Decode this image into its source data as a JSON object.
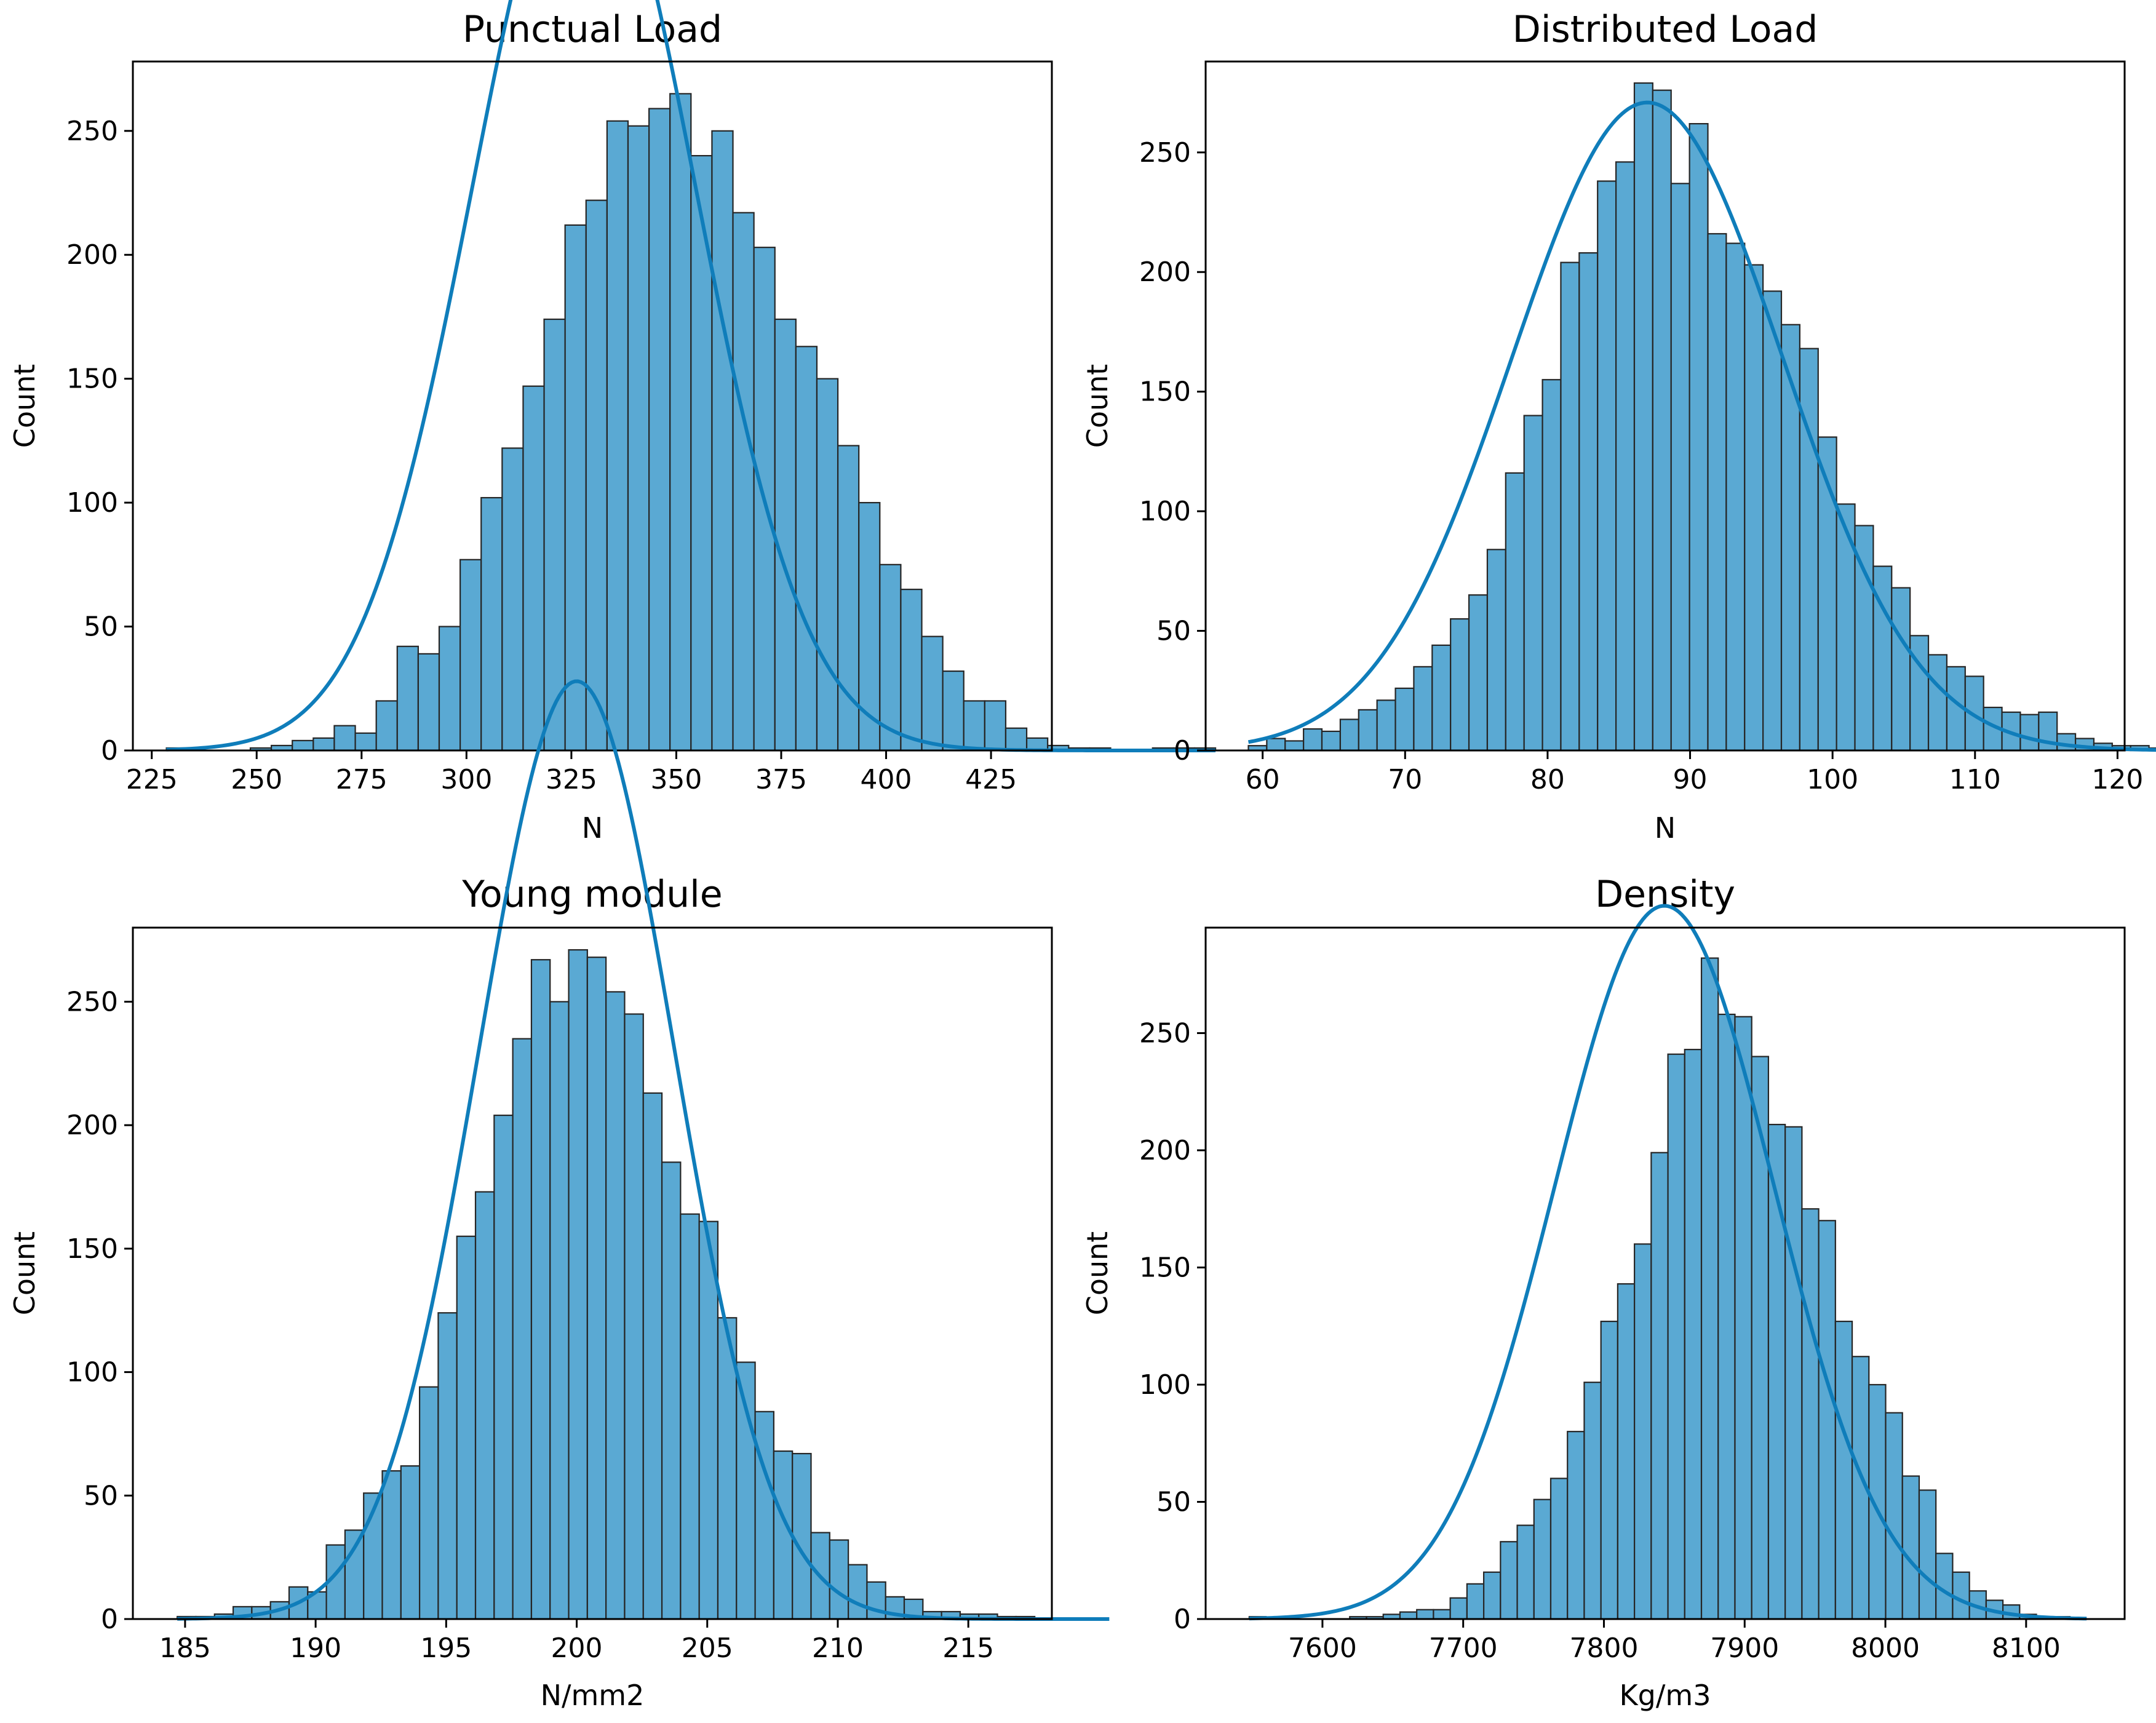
{
  "figure": {
    "bar_color": "#5aa9d3",
    "bar_edge": "#262626",
    "kde_color": "#0f7dba",
    "background": "#ffffff"
  },
  "chart_data": [
    {
      "type": "bar",
      "title": "Punctual Load",
      "xlabel": "N",
      "ylabel": "Count",
      "xlim": [
        220.5,
        439.5
      ],
      "ylim": [
        0,
        278
      ],
      "xticks": [
        225,
        250,
        275,
        300,
        325,
        350,
        375,
        400,
        425
      ],
      "yticks": [
        0,
        50,
        100,
        150,
        200,
        250
      ],
      "bin_start": 228.5,
      "bin_width": 5,
      "values": [
        1,
        0,
        0,
        0,
        1,
        2,
        4,
        5,
        10,
        7,
        20,
        42,
        39,
        50,
        77,
        102,
        122,
        147,
        174,
        212,
        222,
        254,
        252,
        259,
        265,
        240,
        250,
        217,
        203,
        174,
        163,
        150,
        123,
        100,
        75,
        65,
        46,
        32,
        20,
        20,
        9,
        5,
        2,
        1,
        1,
        0,
        0,
        1,
        1,
        1
      ],
      "kde": {
        "mean": 328,
        "sd": 26.5,
        "n": 5000
      }
    },
    {
      "type": "bar",
      "title": "Distributed Load",
      "xlabel": "N",
      "ylabel": "Count",
      "xlim": [
        56,
        120.5
      ],
      "ylim": [
        0,
        288
      ],
      "xticks": [
        60,
        70,
        80,
        90,
        100,
        110,
        120
      ],
      "yticks": [
        0,
        50,
        100,
        150,
        200,
        250
      ],
      "bin_start": 59,
      "bin_width": 1.29,
      "values": [
        2,
        5,
        4,
        9,
        8,
        13,
        17,
        21,
        26,
        35,
        44,
        55,
        65,
        84,
        116,
        140,
        155,
        204,
        208,
        238,
        246,
        279,
        276,
        237,
        262,
        216,
        212,
        203,
        192,
        178,
        168,
        131,
        103,
        94,
        77,
        68,
        48,
        40,
        35,
        31,
        18,
        16,
        15,
        16,
        7,
        5,
        3,
        2,
        2,
        1
      ],
      "kde": {
        "mean": 87,
        "sd": 9.5,
        "n": 5000
      }
    },
    {
      "type": "bar",
      "title": "Young module",
      "xlabel": "N/mm2",
      "ylabel": "Count",
      "xlim": [
        183,
        218.2
      ],
      "ylim": [
        0,
        280
      ],
      "xticks": [
        185,
        190,
        195,
        200,
        205,
        210,
        215
      ],
      "yticks": [
        0,
        50,
        100,
        150,
        200,
        250
      ],
      "bin_start": 184.7,
      "bin_width": 0.714,
      "values": [
        1,
        1,
        2,
        5,
        5,
        7,
        13,
        11,
        30,
        36,
        51,
        60,
        62,
        94,
        124,
        155,
        173,
        204,
        235,
        267,
        250,
        271,
        268,
        254,
        245,
        213,
        185,
        164,
        161,
        122,
        104,
        84,
        68,
        67,
        35,
        32,
        22,
        15,
        9,
        8,
        3,
        3,
        2,
        2,
        1,
        1,
        0,
        0,
        0,
        0
      ],
      "kde": {
        "mean": 200,
        "sd": 3.75,
        "n": 5000
      }
    },
    {
      "type": "bar",
      "title": "Density",
      "xlabel": "Kg/m3",
      "ylabel": "Count",
      "xlim": [
        7517,
        8170
      ],
      "ylim": [
        0,
        295
      ],
      "xticks": [
        7600,
        7700,
        7800,
        7900,
        8000,
        8100
      ],
      "yticks": [
        0,
        50,
        100,
        150,
        200,
        250
      ],
      "bin_start": 7548,
      "bin_width": 11.9,
      "values": [
        1,
        0,
        0,
        0,
        0,
        0,
        1,
        1,
        2,
        3,
        4,
        4,
        9,
        15,
        20,
        33,
        40,
        51,
        60,
        80,
        101,
        127,
        143,
        160,
        199,
        241,
        243,
        282,
        258,
        257,
        240,
        211,
        210,
        175,
        170,
        127,
        112,
        100,
        88,
        61,
        55,
        28,
        20,
        12,
        8,
        6,
        2,
        1,
        1,
        0
      ],
      "kde": {
        "mean": 7843,
        "sd": 78,
        "n": 5000
      }
    }
  ]
}
